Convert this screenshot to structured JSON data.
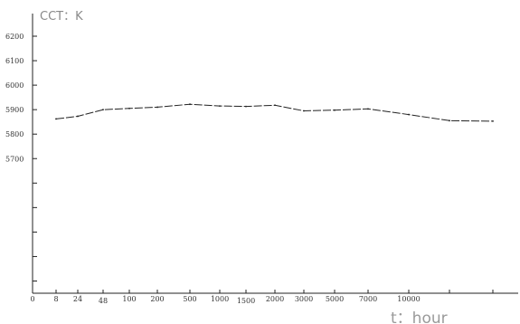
{
  "chart_data": {
    "type": "line",
    "title": "",
    "ylabel": "CCT：K",
    "xlabel": "t：hour",
    "ylim": [
      5200,
      6300
    ],
    "y_ticks": [
      {
        "value": 6200,
        "label": "6200"
      },
      {
        "value": 6100,
        "label": "6100"
      },
      {
        "value": 6000,
        "label": "6000"
      },
      {
        "value": 5900,
        "label": "5900"
      },
      {
        "value": 5800,
        "label": "5800"
      },
      {
        "value": 5700,
        "label": "5700"
      }
    ],
    "y_unlabeled_ticks": [
      5600,
      5500,
      5400,
      5300,
      5200
    ],
    "x_ticks": [
      "0",
      "8",
      "24",
      "48",
      "100",
      "200",
      "500",
      "1000",
      "1500",
      "2000",
      "3000",
      "5000",
      "7000",
      "10000",
      "",
      ""
    ],
    "grid": false,
    "legend": "none",
    "color": "#222222",
    "series": [
      {
        "x": [
          "8",
          "24",
          "48",
          "100",
          "200",
          "500",
          "1000",
          "1500",
          "2000",
          "3000",
          "5000",
          "7000",
          "10000",
          "",
          ""
        ],
        "values": [
          5862,
          5873,
          5900,
          5905,
          5910,
          5922,
          5915,
          5913,
          5918,
          5895,
          5898,
          5903,
          5880,
          5855,
          5853
        ]
      }
    ]
  }
}
